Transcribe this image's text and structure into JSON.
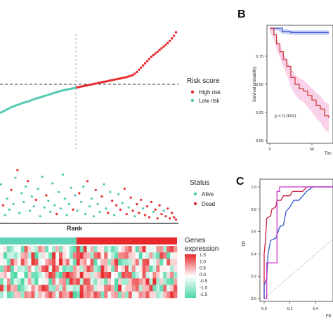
{
  "panels": {
    "B_letter": "B",
    "C_letter": "C"
  },
  "riskscore_legend": {
    "title": "Risk score",
    "items": [
      {
        "label": "High risk",
        "color": "#e8292c"
      },
      {
        "label": "Low risk",
        "color": "#4ec9b0"
      }
    ]
  },
  "status_legend": {
    "title": "Status",
    "items": [
      {
        "label": "Alive",
        "color": "#4ec9b0"
      },
      {
        "label": "Dead",
        "color": "#e8292c"
      }
    ]
  },
  "heatmap_legend": {
    "title_line1": "Genes",
    "title_line2": "expression",
    "ticks": [
      "1.5",
      "1.0",
      "0.5",
      "0.0",
      "-0.5",
      "-1.0",
      "-1.5"
    ],
    "high_color": "#e8292c",
    "mid_color": "#ffffff",
    "low_color": "#4ed8a8"
  },
  "rank_label": "Rank",
  "chart_data": [
    {
      "type": "scatter",
      "name": "risk-score-curve",
      "n_low": 37,
      "n_high": 49,
      "low_color": "#4ec9b0",
      "high_color": "#e8292c",
      "values": [
        0.0,
        0.2,
        0.45,
        0.7,
        0.95,
        1.2,
        1.4,
        1.6,
        1.75,
        1.9,
        2.1,
        2.25,
        2.4,
        2.55,
        2.7,
        2.9,
        3.05,
        3.2,
        3.35,
        3.5,
        3.65,
        3.8,
        3.95,
        4.1,
        4.25,
        4.4,
        4.55,
        4.7,
        4.85,
        5.0,
        5.1,
        5.2,
        5.3,
        5.4,
        5.5,
        5.6,
        5.7,
        5.8,
        5.9,
        6.0,
        6.1,
        6.2,
        6.3,
        6.4,
        6.5,
        6.6,
        6.7,
        6.8,
        6.9,
        7.0,
        7.1,
        7.2,
        7.3,
        7.4,
        7.5,
        7.6,
        7.7,
        7.8,
        7.9,
        8.0,
        8.1,
        8.2,
        8.35,
        8.5,
        8.7,
        9.0,
        9.4,
        9.9,
        10.4,
        10.9,
        11.4,
        11.9,
        12.4,
        12.9,
        13.3,
        13.7,
        14.1,
        14.5,
        14.9,
        15.3,
        15.7,
        16.1,
        16.6,
        17.2,
        17.8,
        18.6
      ],
      "cutoff_value": 5.75
    },
    {
      "type": "scatter",
      "name": "survival-status",
      "points": [
        [
          1,
          "Alive",
          0.66
        ],
        [
          2,
          "Dead",
          0.28
        ],
        [
          3,
          "Alive",
          0.1
        ],
        [
          4,
          "Alive",
          0.4
        ],
        [
          5,
          "Alive",
          0.2
        ],
        [
          6,
          "Dead",
          0.56
        ],
        [
          7,
          "Alive",
          0.3
        ],
        [
          8,
          "Alive",
          0.78
        ],
        [
          9,
          "Dead",
          0.92
        ],
        [
          10,
          "Alive",
          0.14
        ],
        [
          11,
          "Alive",
          0.5
        ],
        [
          12,
          "Alive",
          0.34
        ],
        [
          13,
          "Alive",
          0.62
        ],
        [
          14,
          "Dead",
          0.72
        ],
        [
          15,
          "Alive",
          0.18
        ],
        [
          16,
          "Alive",
          0.44
        ],
        [
          17,
          "Alive",
          0.26
        ],
        [
          18,
          "Dead",
          0.38
        ],
        [
          19,
          "Alive",
          0.58
        ],
        [
          20,
          "Alive",
          0.08
        ],
        [
          21,
          "Alive",
          0.8
        ],
        [
          22,
          "Alive",
          0.24
        ],
        [
          23,
          "Dead",
          0.46
        ],
        [
          24,
          "Alive",
          0.36
        ],
        [
          25,
          "Alive",
          0.16
        ],
        [
          26,
          "Alive",
          0.68
        ],
        [
          27,
          "Alive",
          0.28
        ],
        [
          28,
          "Dead",
          0.12
        ],
        [
          29,
          "Alive",
          0.52
        ],
        [
          30,
          "Alive",
          0.22
        ],
        [
          31,
          "Alive",
          0.84
        ],
        [
          32,
          "Alive",
          0.4
        ],
        [
          33,
          "Alive",
          0.1
        ],
        [
          34,
          "Alive",
          0.3
        ],
        [
          35,
          "Alive",
          0.6
        ],
        [
          36,
          "Dead",
          0.2
        ],
        [
          37,
          "Alive",
          0.46
        ],
        [
          38,
          "Alive",
          0.18
        ],
        [
          39,
          "Dead",
          0.5
        ],
        [
          40,
          "Alive",
          0.34
        ],
        [
          41,
          "Alive",
          0.62
        ],
        [
          42,
          "Alive",
          0.12
        ],
        [
          43,
          "Dead",
          0.72
        ],
        [
          44,
          "Alive",
          0.26
        ],
        [
          45,
          "Alive",
          0.4
        ],
        [
          46,
          "Alive",
          0.08
        ],
        [
          47,
          "Dead",
          0.56
        ],
        [
          48,
          "Alive",
          0.3
        ],
        [
          49,
          "Alive",
          0.16
        ],
        [
          50,
          "Dead",
          0.44
        ],
        [
          51,
          "Alive",
          0.66
        ],
        [
          52,
          "Alive",
          0.22
        ],
        [
          53,
          "Dead",
          0.14
        ],
        [
          54,
          "Alive",
          0.52
        ],
        [
          55,
          "Dead",
          0.36
        ],
        [
          56,
          "Alive",
          0.1
        ],
        [
          57,
          "Dead",
          0.28
        ],
        [
          58,
          "Alive",
          0.48
        ],
        [
          59,
          "Dead",
          0.2
        ],
        [
          60,
          "Alive",
          0.32
        ],
        [
          61,
          "Dead",
          0.58
        ],
        [
          62,
          "Dead",
          0.12
        ],
        [
          63,
          "Alive",
          0.24
        ],
        [
          64,
          "Dead",
          0.42
        ],
        [
          65,
          "Dead",
          0.18
        ],
        [
          66,
          "Alive",
          0.08
        ],
        [
          67,
          "Dead",
          0.3
        ],
        [
          68,
          "Dead",
          0.14
        ],
        [
          69,
          "Dead",
          0.38
        ],
        [
          70,
          "Alive",
          0.22
        ],
        [
          71,
          "Dead",
          0.1
        ],
        [
          72,
          "Dead",
          0.26
        ],
        [
          73,
          "Dead",
          0.06
        ],
        [
          74,
          "Dead",
          0.34
        ],
        [
          75,
          "Alive",
          0.16
        ],
        [
          76,
          "Dead",
          0.2
        ],
        [
          77,
          "Dead",
          0.04
        ],
        [
          78,
          "Dead",
          0.28
        ],
        [
          79,
          "Dead",
          0.12
        ],
        [
          80,
          "Alive",
          0.18
        ],
        [
          81,
          "Dead",
          0.08
        ],
        [
          82,
          "Dead",
          0.22
        ],
        [
          83,
          "Dead",
          0.04
        ],
        [
          84,
          "Dead",
          0.14
        ],
        [
          85,
          "Dead",
          0.06
        ],
        [
          86,
          "Dead",
          0.02
        ]
      ]
    },
    {
      "type": "heatmap",
      "name": "gene-expression",
      "rows": 8,
      "cols": 51,
      "low_group_cols": 22,
      "values_seed": 7
    },
    {
      "type": "line",
      "name": "kaplan-meier",
      "ylabel": "Survival probability",
      "xlabel": "Tim",
      "yticks": [
        "0.00",
        "0.25",
        "0.50",
        "0.75"
      ],
      "xticks": [
        "0",
        "50"
      ],
      "pvalue_text": "p < 0.0001",
      "series": [
        {
          "color": "#3a52c8",
          "band": "#aab4ef",
          "x": [
            0,
            10,
            15,
            20,
            25,
            30,
            40,
            50,
            60,
            70
          ],
          "y": [
            1.0,
            1.0,
            0.97,
            0.97,
            0.96,
            0.96,
            0.96,
            0.96,
            0.96,
            0.96
          ]
        },
        {
          "color": "#cc3333",
          "band": "#f7bde0",
          "x": [
            0,
            5,
            8,
            12,
            16,
            20,
            25,
            30,
            35,
            40,
            45,
            50,
            55,
            60,
            65,
            70
          ],
          "y": [
            1.0,
            0.94,
            0.86,
            0.79,
            0.72,
            0.66,
            0.56,
            0.5,
            0.46,
            0.44,
            0.4,
            0.36,
            0.31,
            0.28,
            0.22,
            0.2
          ]
        }
      ],
      "xlim": [
        0,
        75
      ],
      "ylim": [
        0,
        1.0
      ]
    },
    {
      "type": "line",
      "name": "roc-curves",
      "ylabel": "TP",
      "xlabel": "FP",
      "yticks": [
        "0.0",
        "0.2",
        "0.4",
        "0.6",
        "0.8",
        "1.0"
      ],
      "xticks": [
        "0.0",
        "0.2",
        "0.4"
      ],
      "xlim": [
        0,
        0.6
      ],
      "ylim": [
        0,
        1.0
      ],
      "series": [
        {
          "color": "#cc2244",
          "points": [
            [
              0,
              0
            ],
            [
              0,
              0.4
            ],
            [
              0.01,
              0.52
            ],
            [
              0.02,
              0.72
            ],
            [
              0.05,
              0.74
            ],
            [
              0.06,
              0.8
            ],
            [
              0.09,
              0.82
            ],
            [
              0.1,
              0.88
            ],
            [
              0.13,
              0.88
            ],
            [
              0.15,
              0.92
            ],
            [
              0.2,
              0.92
            ],
            [
              0.22,
              0.96
            ],
            [
              0.3,
              0.96
            ],
            [
              0.33,
              1.0
            ],
            [
              0.6,
              1.0
            ]
          ]
        },
        {
          "color": "#3355cc",
          "points": [
            [
              0,
              0
            ],
            [
              0,
              0.12
            ],
            [
              0.02,
              0.18
            ],
            [
              0.03,
              0.4
            ],
            [
              0.05,
              0.52
            ],
            [
              0.09,
              0.54
            ],
            [
              0.12,
              0.64
            ],
            [
              0.15,
              0.66
            ],
            [
              0.17,
              0.78
            ],
            [
              0.2,
              0.82
            ],
            [
              0.23,
              0.88
            ],
            [
              0.27,
              0.88
            ],
            [
              0.3,
              0.92
            ],
            [
              0.33,
              0.96
            ],
            [
              0.38,
              1.0
            ],
            [
              0.6,
              1.0
            ]
          ]
        },
        {
          "color": "#cc33cc",
          "points": [
            [
              0,
              0
            ],
            [
              0.02,
              0
            ],
            [
              0.02,
              0.32
            ],
            [
              0.1,
              0.32
            ],
            [
              0.1,
              0.96
            ],
            [
              0.12,
              0.96
            ],
            [
              0.12,
              1.0
            ],
            [
              0.6,
              1.0
            ]
          ]
        }
      ],
      "diagonal_color": "#999999"
    }
  ]
}
